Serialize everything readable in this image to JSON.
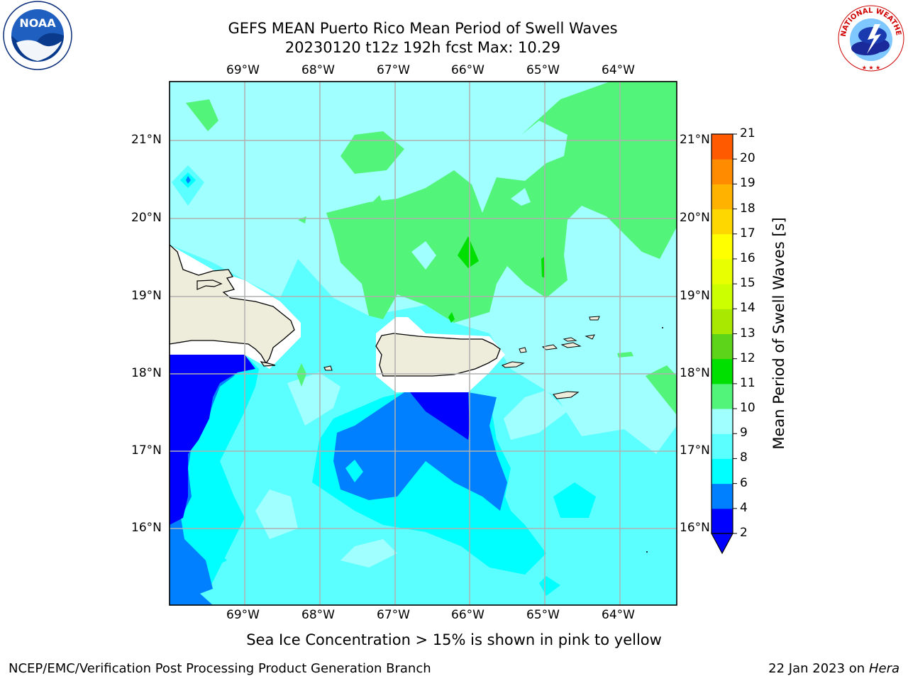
{
  "title": {
    "line1": "GEFS MEAN Puerto Rico Mean Period of Swell Waves",
    "line2": "20230120 t12z 192h fcst   Max: 10.29"
  },
  "logos": {
    "left": {
      "name": "noaa-logo",
      "text": "NOAA"
    },
    "right": {
      "name": "nws-logo",
      "text": "NATIONAL WEATHER SERVICE"
    }
  },
  "map": {
    "lon_ticks": [
      "69°W",
      "68°W",
      "67°W",
      "66°W",
      "65°W",
      "64°W"
    ],
    "lat_ticks": [
      "21°N",
      "20°N",
      "19°N",
      "18°N",
      "17°N",
      "16°N"
    ],
    "extent": {
      "lon": [
        -70,
        -63.25
      ],
      "lat": [
        15,
        21.75
      ]
    },
    "grid": true,
    "land_color": "#eeecda",
    "sea_ice_note": "Sea Ice Concentration > 15% is shown in pink to yellow"
  },
  "colorbar": {
    "label": "Mean Period of Swell Waves [s]",
    "ticks": [
      "21",
      "20",
      "19",
      "18",
      "17",
      "16",
      "15",
      "14",
      "13",
      "12",
      "11",
      "10",
      "9",
      "8",
      "6",
      "4",
      "2"
    ],
    "levels": [
      2,
      4,
      6,
      8,
      9,
      10,
      11,
      12,
      13,
      14,
      15,
      16,
      17,
      18,
      19,
      20,
      21
    ],
    "colors": [
      "#0000ff",
      "#0080ff",
      "#00ffff",
      "#5cffff",
      "#a0ffff",
      "#52f57a",
      "#00e000",
      "#5dd419",
      "#a9e800",
      "#ccff00",
      "#e7ff00",
      "#ffff00",
      "#ffd700",
      "#ffb300",
      "#ff8c00",
      "#ff5a00",
      "#ff0000"
    ],
    "extend_color": "#0000ff"
  },
  "footer": {
    "left": "NCEP/EMC/Verification Post Processing Product Generation Branch",
    "date": "22 Jan 2023 on ",
    "machine": "Hera"
  }
}
